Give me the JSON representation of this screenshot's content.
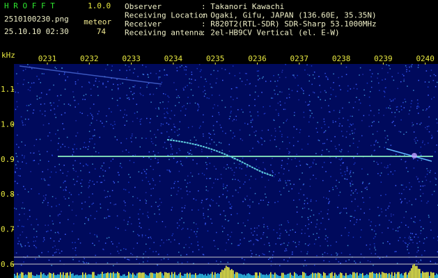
{
  "header": {
    "app": "H R O F F T",
    "version": "1.0.0",
    "filename": "2510100230.png",
    "datetime": "25.10.10 02:30",
    "count_label": "meteor",
    "count": 74,
    "fields": [
      {
        "label": "Observer",
        "value": ": Takanori Kawachi"
      },
      {
        "label": "Receiving Location",
        "value": ": Ogaki, Gifu, JAPAN (136.60E, 35.35N)"
      },
      {
        "label": "Receiver",
        "value": ": R820T2(RTL-SDR) SDR-Sharp 53.1000MHz"
      },
      {
        "label": "Receiving antenna",
        "value": ": 2el-HB9CV Vertical (el. E-W)"
      }
    ]
  },
  "axes": {
    "y_unit": "kHz",
    "y_labels": [
      "1.1",
      "1.0",
      "0.9",
      "0.8",
      "0.7",
      "0.6"
    ],
    "x_labels": [
      "0231",
      "0232",
      "0233",
      "0234",
      "0235",
      "0236",
      "0237",
      "0238",
      "0239",
      "0240"
    ]
  }
}
